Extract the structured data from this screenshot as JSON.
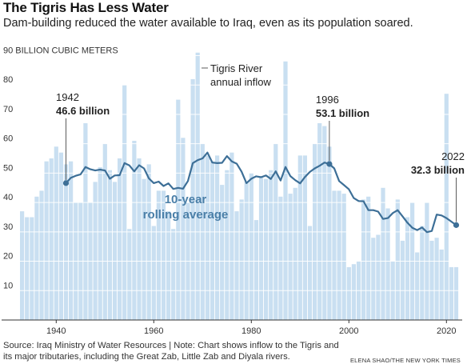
{
  "title": "The Tigris Has Less Water",
  "subtitle": "Dam-building reduced the water available to Iraq, even as its population soared.",
  "source": "Source: Iraq Ministry of Water Resources | Note: Chart shows inflow to the Tigris and its major tributaries, including the Great Zab, Little Zab and Diyala rivers.",
  "credit": "ELENA SHAO/THE NEW YORK TIMES",
  "colors": {
    "bars": "#c9dff1",
    "line": "#3d6f97",
    "label_blue": "#4a7fa8"
  },
  "chart_data": {
    "type": "bar",
    "unit_label": "90 BILLION CUBIC METERS",
    "ylim": [
      0,
      90
    ],
    "yticks": [
      10,
      20,
      30,
      40,
      50,
      60,
      70,
      80,
      90
    ],
    "xticks": [
      1940,
      1960,
      1980,
      2000,
      2020
    ],
    "series": [
      {
        "name": "Tigris River annual inflow",
        "x": [
          1933,
          1934,
          1935,
          1936,
          1937,
          1938,
          1939,
          1940,
          1941,
          1942,
          1943,
          1944,
          1945,
          1946,
          1947,
          1948,
          1949,
          1950,
          1951,
          1952,
          1953,
          1954,
          1955,
          1956,
          1957,
          1958,
          1959,
          1960,
          1961,
          1962,
          1963,
          1964,
          1965,
          1966,
          1967,
          1968,
          1969,
          1970,
          1971,
          1972,
          1973,
          1974,
          1975,
          1976,
          1977,
          1978,
          1979,
          1980,
          1981,
          1982,
          1983,
          1984,
          1985,
          1986,
          1987,
          1988,
          1989,
          1990,
          1991,
          1992,
          1993,
          1994,
          1995,
          1996,
          1997,
          1998,
          1999,
          2000,
          2001,
          2002,
          2003,
          2004,
          2005,
          2006,
          2007,
          2008,
          2009,
          2010,
          2011,
          2012,
          2013,
          2014,
          2015,
          2016,
          2017,
          2018,
          2019,
          2020,
          2021,
          2022
        ],
        "values": [
          37,
          35,
          35,
          42,
          44,
          54,
          55,
          59,
          57,
          53,
          54,
          40,
          40,
          67,
          40,
          47,
          52,
          60,
          51,
          47,
          55,
          80,
          31,
          61,
          55,
          48,
          53,
          32,
          44,
          44,
          37,
          31,
          75,
          62,
          40,
          82,
          91,
          60,
          56,
          54,
          56,
          46,
          51,
          57,
          37,
          41,
          47,
          50,
          34,
          49,
          48,
          51,
          60,
          42,
          88,
          43,
          45,
          56,
          56,
          32,
          60,
          67,
          66,
          59,
          44,
          44,
          43,
          18,
          19,
          20,
          41,
          42,
          28,
          29,
          45,
          38,
          20,
          41,
          27,
          35,
          40,
          23,
          32,
          40,
          27,
          28,
          24,
          77,
          18,
          18
        ]
      },
      {
        "name": "10-year rolling average",
        "x": [
          1942,
          1943,
          1944,
          1945,
          1946,
          1947,
          1948,
          1949,
          1950,
          1951,
          1952,
          1953,
          1954,
          1955,
          1956,
          1957,
          1958,
          1959,
          1960,
          1961,
          1962,
          1963,
          1964,
          1965,
          1966,
          1967,
          1968,
          1969,
          1970,
          1971,
          1972,
          1973,
          1974,
          1975,
          1976,
          1977,
          1978,
          1979,
          1980,
          1981,
          1982,
          1983,
          1984,
          1985,
          1986,
          1987,
          1988,
          1989,
          1990,
          1991,
          1992,
          1993,
          1994,
          1995,
          1996,
          1997,
          1998,
          1999,
          2000,
          2001,
          2002,
          2003,
          2004,
          2005,
          2006,
          2007,
          2008,
          2009,
          2010,
          2011,
          2012,
          2013,
          2014,
          2015,
          2016,
          2017,
          2018,
          2019,
          2020,
          2021,
          2022
        ],
        "values": [
          46.6,
          48.4,
          49.1,
          49.6,
          52.1,
          51.3,
          50.9,
          51.2,
          50.9,
          48.1,
          49.2,
          49.3,
          53.4,
          52.6,
          50.6,
          52.7,
          51.6,
          48.2,
          46.6,
          47.1,
          45.6,
          46.5,
          44.6,
          45.0,
          44.7,
          47.3,
          53.4,
          54.4,
          55.0,
          57.0,
          53.6,
          53.4,
          53.5,
          55.8,
          54.0,
          53.2,
          50.5,
          46.6,
          48.1,
          48.9,
          48.6,
          49.2,
          48.0,
          50.6,
          47.5,
          52.1,
          49.0,
          47.6,
          46.5,
          48.7,
          50.4,
          51.6,
          52.5,
          53.6,
          53.1,
          51.6,
          47.3,
          45.9,
          44.5,
          41.5,
          40.5,
          40.4,
          37.4,
          37.4,
          36.9,
          34.4,
          34.7,
          36.4,
          37.4,
          35.3,
          33.1,
          31.4,
          30.6,
          31.5,
          29.9,
          30.3,
          35.9,
          35.6,
          34.7,
          33.5,
          32.3
        ]
      }
    ],
    "annotations": [
      {
        "year": 1942,
        "label": "1942",
        "value_label": "46.6 billion",
        "value": 46.6
      },
      {
        "year": 1996,
        "label": "1996",
        "value_label": "53.1 billion",
        "value": 53.1
      },
      {
        "year": 2022,
        "label": "2022",
        "value_label": "32.3 billion",
        "value": 32.3
      }
    ],
    "series_labels": {
      "inflow_line1": "Tigris River",
      "inflow_line2": "annual inflow",
      "rolling_line1": "10-year",
      "rolling_line2": "rolling average"
    }
  }
}
